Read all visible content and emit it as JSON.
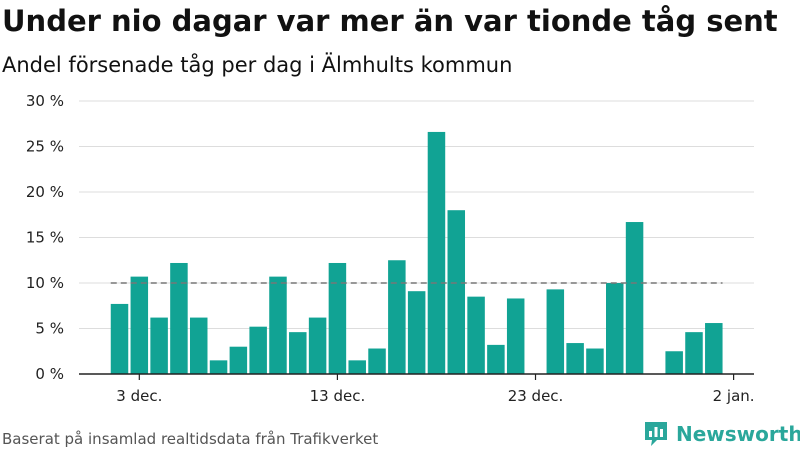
{
  "title": "Under nio dagar var mer än var tionde tåg sent",
  "subtitle": "Andel försenade tåg per dag i Älmhults kommun",
  "footer": "Baserat på insamlad realtidsdata från Trafikverket",
  "brand": "Newsworthy",
  "colors": {
    "bar": "#11a394",
    "reference": "#777777",
    "grid": "#dddddd",
    "brand": "#2aa79b"
  },
  "chart_data": {
    "type": "bar",
    "categories": [
      "2 dec.",
      "3 dec.",
      "4 dec.",
      "5 dec.",
      "6 dec.",
      "7 dec.",
      "8 dec.",
      "9 dec.",
      "10 dec.",
      "11 dec.",
      "12 dec.",
      "13 dec.",
      "14 dec.",
      "15 dec.",
      "16 dec.",
      "17 dec.",
      "18 dec.",
      "19 dec.",
      "20 dec.",
      "21 dec.",
      "22 dec.",
      "23 dec.",
      "24 dec.",
      "25 dec.",
      "26 dec.",
      "27 dec.",
      "28 dec.",
      "29 dec.",
      "30 dec.",
      "31 dec.",
      "1 jan."
    ],
    "values": [
      7.7,
      10.7,
      6.2,
      12.2,
      6.2,
      1.5,
      3.0,
      5.2,
      10.7,
      4.6,
      6.2,
      12.2,
      1.5,
      2.8,
      12.5,
      9.1,
      26.6,
      18.0,
      8.5,
      3.2,
      8.3,
      null,
      9.3,
      3.4,
      2.8,
      10.0,
      16.7,
      null,
      2.5,
      4.6,
      5.6
    ],
    "reference_line": 10,
    "ylim": [
      0,
      30
    ],
    "yticks": [
      "0 %",
      "5 %",
      "10 %",
      "15 %",
      "20 %",
      "25 %",
      "30 %"
    ],
    "xticks": [
      {
        "label": "3 dec.",
        "category": "3 dec."
      },
      {
        "label": "13 dec.",
        "category": "13 dec."
      },
      {
        "label": "23 dec.",
        "category": "23 dec."
      },
      {
        "label": "2 jan.",
        "category": "2 jan."
      }
    ],
    "grid": true
  }
}
